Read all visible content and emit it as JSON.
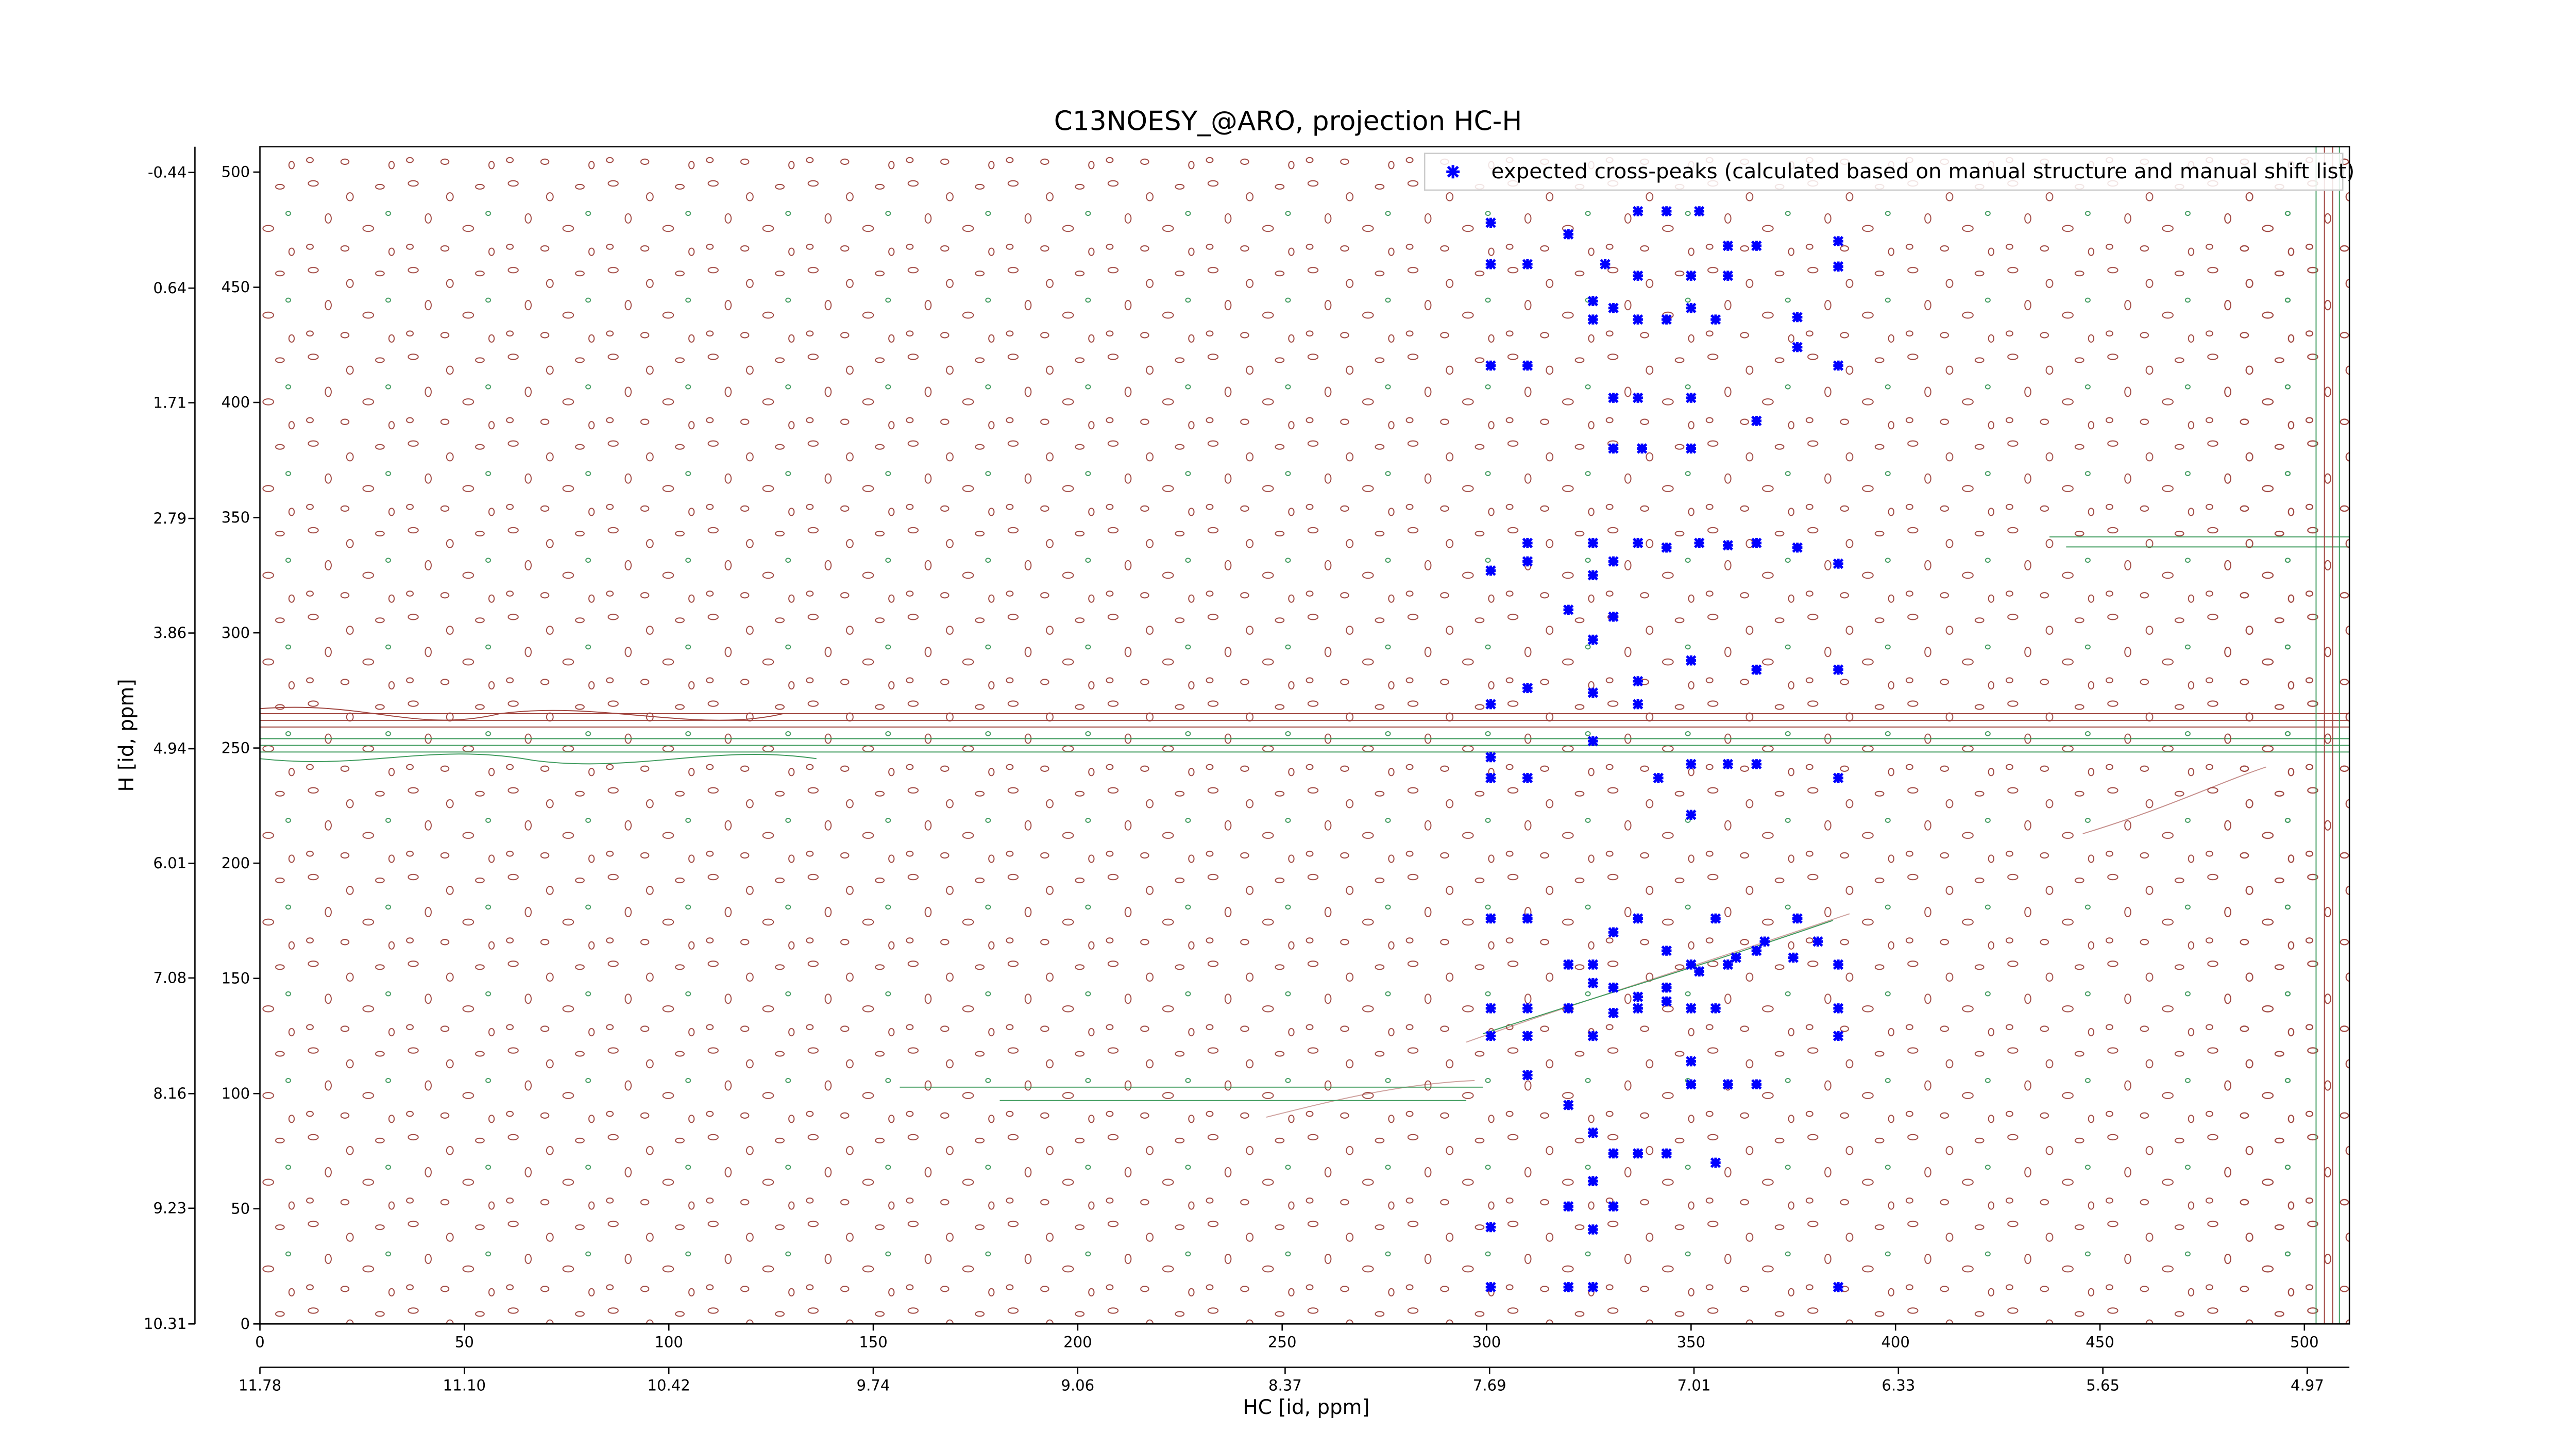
{
  "chart_data": {
    "type": "scatter",
    "title": "C13NOESY_@ARO, projection HC-H",
    "xlabel": "HC [id, ppm]",
    "ylabel": "H [id, ppm]",
    "xlim": [
      0,
      511
    ],
    "ylim": [
      0,
      511
    ],
    "xticks": [
      0,
      50,
      100,
      150,
      200,
      250,
      300,
      350,
      400,
      450,
      500
    ],
    "yticks": [
      0,
      50,
      100,
      150,
      200,
      250,
      300,
      350,
      400,
      450,
      500
    ],
    "x2lim": [
      11.78,
      4.83
    ],
    "x2ticks": [
      11.78,
      {
        "value": 11.1,
        "label": "11.10"
      },
      10.42,
      9.74,
      9.06,
      8.37,
      7.69,
      7.01,
      6.33,
      5.65,
      4.97
    ],
    "y2lim": [
      10.31,
      -0.68
    ],
    "y2ticks": [
      10.31,
      9.23,
      8.16,
      7.08,
      6.01,
      4.94,
      3.86,
      2.79,
      1.71,
      0.64,
      -0.44
    ],
    "legend": "upper right",
    "series": [
      {
        "name": "expected cross-peaks (calculated based on manual structure and manual shift list)",
        "color": "#0000ff",
        "x": [
          301,
          301,
          301,
          310,
          310,
          320,
          326,
          326,
          329,
          331,
          331,
          331,
          337,
          337,
          337,
          337,
          338,
          344,
          344,
          350,
          350,
          350,
          350,
          352,
          356,
          359,
          359,
          366,
          366,
          376,
          376,
          386,
          386,
          386,
          301,
          310,
          310,
          326,
          326,
          331,
          337,
          344,
          352,
          359,
          366,
          376,
          386,
          320,
          326,
          331,
          337,
          326,
          350,
          366,
          386,
          310,
          301,
          337,
          301,
          301,
          310,
          326,
          342,
          350,
          359,
          366,
          386,
          350,
          301,
          310,
          320,
          326,
          331,
          337,
          344,
          350,
          356,
          361,
          366,
          376,
          386,
          326,
          331,
          337,
          344,
          352,
          359,
          368,
          375,
          381,
          301,
          301,
          310,
          310,
          320,
          326,
          331,
          337,
          344,
          350,
          356,
          386,
          386,
          310,
          320,
          350,
          350,
          359,
          366,
          326,
          331,
          337,
          344,
          356,
          326,
          331,
          320,
          301,
          326,
          301,
          320,
          326,
          386
        ],
        "y": [
          478,
          460,
          416,
          460,
          416,
          473,
          444,
          436,
          460,
          441,
          402,
          380,
          483,
          455,
          436,
          402,
          380,
          483,
          436,
          455,
          441,
          402,
          380,
          483,
          436,
          455,
          468,
          468,
          392,
          424,
          437,
          470,
          459,
          416,
          327,
          339,
          331,
          339,
          325,
          331,
          339,
          337,
          339,
          338,
          339,
          337,
          330,
          310,
          297,
          307,
          279,
          274,
          288,
          284,
          284,
          276,
          269,
          269,
          246,
          237,
          237,
          253,
          237,
          243,
          243,
          243,
          237,
          221,
          176,
          176,
          156,
          156,
          170,
          176,
          162,
          156,
          176,
          159,
          162,
          176,
          156,
          148,
          146,
          142,
          146,
          153,
          156,
          166,
          159,
          166,
          137,
          125,
          137,
          125,
          137,
          125,
          135,
          137,
          140,
          137,
          137,
          137,
          125,
          108,
          95,
          114,
          104,
          104,
          104,
          83,
          74,
          74,
          74,
          70,
          62,
          51,
          51,
          42,
          41,
          16,
          16,
          16,
          16
        ]
      }
    ]
  }
}
